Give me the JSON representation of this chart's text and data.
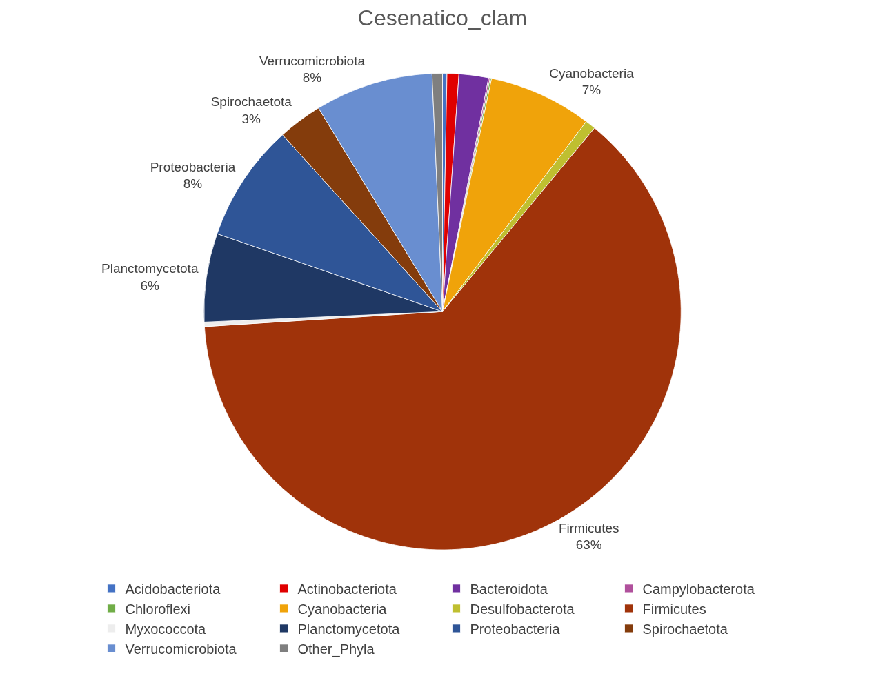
{
  "chart_data": {
    "type": "pie",
    "title": "Cesenatico_clam",
    "categories": [
      "Acidobacteriota",
      "Actinobacteriota",
      "Bacteroidota",
      "Campylobacterota",
      "Chloroflexi",
      "Cyanobacteria",
      "Desulfobacterota",
      "Firmicutes",
      "Myxococcota",
      "Planctomycetota",
      "Proteobacteria",
      "Spirochaetota",
      "Verrucomicrobiota",
      "Other_Phyla"
    ],
    "values": [
      0.3,
      0.8,
      2.0,
      0.1,
      0.1,
      7,
      0.7,
      63,
      0.3,
      6,
      8,
      3,
      8,
      0.7
    ],
    "value_labels": [
      null,
      null,
      null,
      null,
      null,
      "7%",
      null,
      "63%",
      null,
      "6%",
      "8%",
      "3%",
      "8%",
      null
    ],
    "colors": [
      "#4472c4",
      "#e00000",
      "#7030a0",
      "#b0509c",
      "#70ad47",
      "#f0a30a",
      "#bfbf30",
      "#a0330a",
      "#ededed",
      "#1f3864",
      "#2f5597",
      "#843c0c",
      "#698ed0",
      "#7f7f7f"
    ],
    "legend": "bottom"
  }
}
